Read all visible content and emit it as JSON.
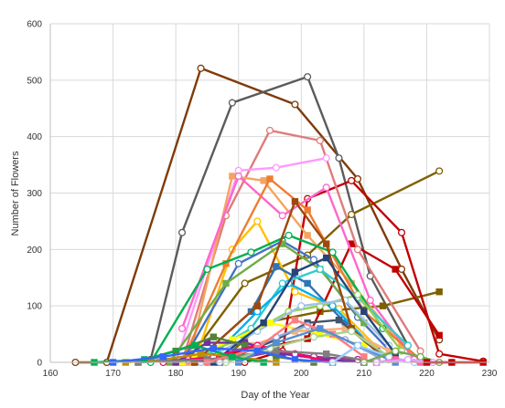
{
  "chart_data": {
    "type": "line",
    "title": "",
    "xlabel": "Day of the Year",
    "ylabel": "Number of Flowers",
    "xlim": [
      160,
      230
    ],
    "ylim": [
      0,
      600
    ],
    "xticks": [
      "160",
      "170",
      "180",
      "190",
      "200",
      "210",
      "220",
      "230"
    ],
    "yticks": [
      "0",
      "100",
      "200",
      "300",
      "400",
      "500",
      "600"
    ],
    "grid": true,
    "legend": "none",
    "series": [
      {
        "color": "#7f3b08",
        "marker": "open-circle",
        "points": [
          [
            164,
            0
          ],
          [
            169,
            0
          ],
          [
            184,
            521
          ],
          [
            199,
            457
          ],
          [
            209,
            325
          ],
          [
            216,
            165
          ],
          [
            222,
            40
          ]
        ]
      },
      {
        "color": "#5b5b5b",
        "marker": "open-circle",
        "points": [
          [
            176,
            5
          ],
          [
            181,
            230
          ],
          [
            189,
            460
          ],
          [
            201,
            506
          ],
          [
            206,
            362
          ],
          [
            211,
            153
          ],
          [
            217,
            30
          ]
        ]
      },
      {
        "color": "#7f6000",
        "marker": "open-circle",
        "points": [
          [
            182,
            5
          ],
          [
            191,
            140
          ],
          [
            201,
            190
          ],
          [
            208,
            262
          ],
          [
            222,
            339
          ]
        ]
      },
      {
        "color": "#7f6000",
        "marker": "square",
        "points": [
          [
            187,
            0
          ],
          [
            194,
            70
          ],
          [
            203,
            90
          ],
          [
            213,
            100
          ],
          [
            222,
            125
          ]
        ]
      },
      {
        "color": "#c00000",
        "marker": "open-circle",
        "points": [
          [
            191,
            0
          ],
          [
            197,
            20
          ],
          [
            201,
            290
          ],
          [
            208,
            322
          ],
          [
            216,
            230
          ],
          [
            222,
            15
          ],
          [
            229,
            2
          ]
        ]
      },
      {
        "color": "#c00000",
        "marker": "square",
        "points": [
          [
            181,
            0
          ],
          [
            196,
            30
          ],
          [
            201,
            42
          ],
          [
            208,
            210
          ],
          [
            215,
            165
          ],
          [
            222,
            48
          ]
        ]
      },
      {
        "color": "#e07b7b",
        "marker": "open-circle",
        "points": [
          [
            181,
            0
          ],
          [
            188,
            260
          ],
          [
            195,
            411
          ],
          [
            203,
            393
          ],
          [
            209,
            200
          ],
          [
            219,
            20
          ]
        ]
      },
      {
        "color": "#ff99ff",
        "marker": "open-circle",
        "points": [
          [
            180,
            0
          ],
          [
            190,
            340
          ],
          [
            196,
            345
          ],
          [
            204,
            362
          ]
        ]
      },
      {
        "color": "#f4a460",
        "marker": "square",
        "points": [
          [
            182,
            0
          ],
          [
            189,
            330
          ],
          [
            194,
            322
          ],
          [
            201,
            225
          ],
          [
            208,
            140
          ],
          [
            216,
            30
          ]
        ]
      },
      {
        "color": "#ff66cc",
        "marker": "open-circle",
        "points": [
          [
            181,
            60
          ],
          [
            190,
            330
          ],
          [
            197,
            260
          ],
          [
            204,
            310
          ],
          [
            211,
            110
          ],
          [
            218,
            5
          ]
        ]
      },
      {
        "color": "#ffc000",
        "marker": "open-circle",
        "points": [
          [
            183,
            0
          ],
          [
            189,
            200
          ],
          [
            193,
            250
          ],
          [
            199,
            125
          ],
          [
            206,
            95
          ],
          [
            214,
            5
          ]
        ]
      },
      {
        "color": "#ed7d31",
        "marker": "square",
        "points": [
          [
            181,
            0
          ],
          [
            188,
            175
          ],
          [
            195,
            325
          ],
          [
            201,
            270
          ],
          [
            210,
            90
          ],
          [
            219,
            5
          ]
        ]
      },
      {
        "color": "#4472c4",
        "marker": "open-circle",
        "points": [
          [
            181,
            0
          ],
          [
            190,
            175
          ],
          [
            197,
            215
          ],
          [
            202,
            182
          ],
          [
            209,
            80
          ],
          [
            215,
            10
          ]
        ]
      },
      {
        "color": "#2e75b6",
        "marker": "square",
        "points": [
          [
            183,
            0
          ],
          [
            192,
            90
          ],
          [
            196,
            170
          ],
          [
            201,
            140
          ],
          [
            207,
            70
          ],
          [
            214,
            5
          ]
        ]
      },
      {
        "color": "#00b050",
        "marker": "open-circle",
        "points": [
          [
            176,
            0
          ],
          [
            185,
            165
          ],
          [
            192,
            195
          ],
          [
            198,
            225
          ],
          [
            205,
            195
          ],
          [
            213,
            60
          ]
        ]
      },
      {
        "color": "#70ad47",
        "marker": "square",
        "points": [
          [
            179,
            0
          ],
          [
            188,
            140
          ],
          [
            197,
            210
          ],
          [
            203,
            165
          ],
          [
            210,
            70
          ]
        ]
      },
      {
        "color": "#33cccc",
        "marker": "open-circle",
        "points": [
          [
            183,
            0
          ],
          [
            192,
            60
          ],
          [
            197,
            140
          ],
          [
            203,
            165
          ],
          [
            209,
            115
          ],
          [
            217,
            30
          ]
        ]
      },
      {
        "color": "#00b0f0",
        "marker": "open-circle",
        "points": [
          [
            185,
            0
          ],
          [
            193,
            90
          ],
          [
            198,
            140
          ],
          [
            205,
            100
          ],
          [
            212,
            20
          ]
        ]
      },
      {
        "color": "#92d050",
        "marker": "open-circle",
        "points": [
          [
            181,
            0
          ],
          [
            190,
            40
          ],
          [
            198,
            90
          ],
          [
            203,
            100
          ],
          [
            209,
            120
          ],
          [
            216,
            20
          ]
        ]
      },
      {
        "color": "#9dc3e6",
        "marker": "open-circle",
        "points": [
          [
            184,
            0
          ],
          [
            193,
            55
          ],
          [
            200,
            100
          ],
          [
            207,
            110
          ],
          [
            214,
            30
          ]
        ]
      },
      {
        "color": "#ffff00",
        "marker": "square",
        "points": [
          [
            181,
            0
          ],
          [
            189,
            40
          ],
          [
            195,
            70
          ],
          [
            203,
            50
          ],
          [
            210,
            30
          ]
        ]
      },
      {
        "color": "#f4b183",
        "marker": "square",
        "points": [
          [
            183,
            0
          ],
          [
            192,
            30
          ],
          [
            199,
            55
          ],
          [
            207,
            60
          ],
          [
            214,
            20
          ]
        ]
      },
      {
        "color": "#7030a0",
        "marker": "square",
        "points": [
          [
            180,
            0
          ],
          [
            185,
            35
          ],
          [
            191,
            35
          ],
          [
            197,
            15
          ],
          [
            204,
            5
          ],
          [
            210,
            0
          ]
        ]
      },
      {
        "color": "#a03090",
        "marker": "open-circle",
        "points": [
          [
            182,
            5
          ],
          [
            187,
            0
          ],
          [
            196,
            20
          ],
          [
            202,
            10
          ],
          [
            209,
            5
          ]
        ]
      },
      {
        "color": "#44546a",
        "marker": "square",
        "points": [
          [
            187,
            0
          ],
          [
            196,
            40
          ],
          [
            201,
            70
          ],
          [
            206,
            75
          ],
          [
            212,
            20
          ]
        ]
      },
      {
        "color": "#9e480e",
        "marker": "square",
        "points": [
          [
            183,
            0
          ],
          [
            193,
            100
          ],
          [
            199,
            285
          ],
          [
            204,
            210
          ],
          [
            208,
            60
          ],
          [
            213,
            10
          ]
        ]
      },
      {
        "color": "#264478",
        "marker": "square",
        "points": [
          [
            186,
            0
          ],
          [
            194,
            70
          ],
          [
            199,
            160
          ],
          [
            204,
            185
          ],
          [
            210,
            90
          ],
          [
            215,
            15
          ]
        ]
      },
      {
        "color": "#8faadc",
        "marker": "open-circle",
        "points": [
          [
            187,
            0
          ],
          [
            196,
            45
          ],
          [
            201,
            65
          ],
          [
            207,
            40
          ],
          [
            213,
            5
          ]
        ]
      },
      {
        "color": "#548235",
        "marker": "square",
        "points": [
          [
            174,
            0
          ],
          [
            180,
            20
          ],
          [
            186,
            45
          ],
          [
            191,
            30
          ],
          [
            196,
            10
          ],
          [
            202,
            0
          ]
        ]
      },
      {
        "color": "#ff0066",
        "marker": "open-circle",
        "points": [
          [
            178,
            0
          ],
          [
            186,
            10
          ],
          [
            193,
            30
          ],
          [
            199,
            15
          ],
          [
            205,
            0
          ]
        ]
      },
      {
        "color": "#bf9000",
        "marker": "square",
        "points": [
          [
            172,
            0
          ],
          [
            178,
            5
          ],
          [
            184,
            15
          ],
          [
            190,
            10
          ],
          [
            196,
            0
          ]
        ]
      },
      {
        "color": "#7f7f7f",
        "marker": "square",
        "points": [
          [
            174,
            0
          ],
          [
            185,
            5
          ],
          [
            196,
            20
          ],
          [
            204,
            15
          ],
          [
            212,
            0
          ]
        ]
      },
      {
        "color": "#ff7c80",
        "marker": "square",
        "points": [
          [
            185,
            0
          ],
          [
            193,
            25
          ],
          [
            199,
            75
          ],
          [
            205,
            50
          ],
          [
            210,
            10
          ]
        ]
      },
      {
        "color": "#a9d18e",
        "marker": "open-circle",
        "points": [
          [
            188,
            0
          ],
          [
            195,
            25
          ],
          [
            202,
            45
          ],
          [
            208,
            55
          ],
          [
            214,
            10
          ]
        ]
      },
      {
        "color": "#548dd4",
        "marker": "square",
        "points": [
          [
            190,
            0
          ],
          [
            196,
            35
          ],
          [
            203,
            60
          ],
          [
            209,
            30
          ],
          [
            215,
            0
          ]
        ]
      },
      {
        "color": "#00b050",
        "marker": "square",
        "points": [
          [
            167,
            0
          ],
          [
            175,
            5
          ],
          [
            183,
            30
          ],
          [
            189,
            10
          ],
          [
            194,
            0
          ]
        ]
      },
      {
        "color": "#3366ff",
        "marker": "square",
        "points": [
          [
            170,
            0
          ],
          [
            178,
            10
          ],
          [
            186,
            25
          ],
          [
            193,
            20
          ],
          [
            199,
            5
          ],
          [
            205,
            0
          ]
        ]
      },
      {
        "color": "#99ccff",
        "marker": "open-circle",
        "points": [
          [
            205,
            0
          ],
          [
            209,
            30
          ],
          [
            214,
            10
          ],
          [
            218,
            0
          ]
        ]
      },
      {
        "color": "#ff6699",
        "marker": "square",
        "points": [
          [
            212,
            0
          ],
          [
            215,
            5
          ],
          [
            219,
            0
          ]
        ]
      },
      {
        "color": "#70ad47",
        "marker": "open-circle",
        "points": [
          [
            210,
            0
          ],
          [
            215,
            20
          ],
          [
            219,
            10
          ],
          [
            222,
            0
          ]
        ]
      },
      {
        "color": "#e2a0ff",
        "marker": "open-circle",
        "points": [
          [
            212,
            0
          ],
          [
            217,
            5
          ],
          [
            221,
            0
          ],
          [
            224,
            0
          ]
        ]
      },
      {
        "color": "#c00000",
        "marker": "square",
        "points": [
          [
            220,
            0
          ],
          [
            224,
            0
          ],
          [
            229,
            0
          ]
        ]
      }
    ]
  }
}
